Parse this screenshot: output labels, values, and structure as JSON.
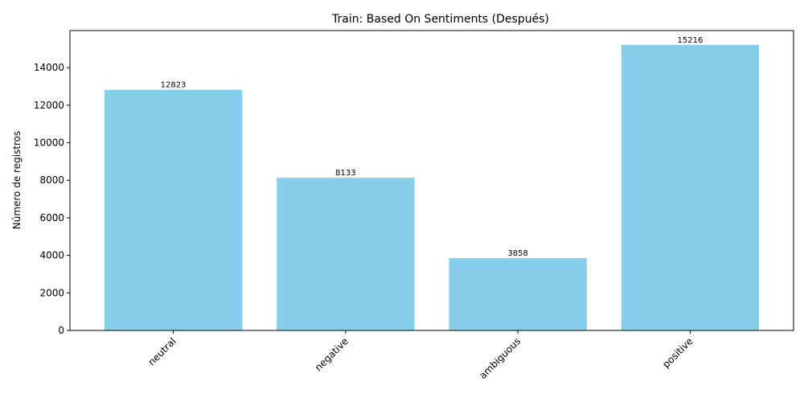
{
  "chart_data": {
    "type": "bar",
    "title": "Train: Based On Sentiments (Después)",
    "xlabel": "",
    "ylabel": "Número de registros",
    "categories": [
      "neutral",
      "negative",
      "ambiguous",
      "positive"
    ],
    "values": [
      12823,
      8133,
      3858,
      15216
    ],
    "data_labels": [
      "12823",
      "8133",
      "3858",
      "15216"
    ],
    "ylim": [
      0,
      15976.8
    ],
    "yticks": [
      0,
      2000,
      4000,
      6000,
      8000,
      10000,
      12000,
      14000
    ],
    "ytick_labels": [
      "0",
      "2000",
      "4000",
      "6000",
      "8000",
      "10000",
      "12000",
      "14000"
    ],
    "bar_color": "#87CEEB",
    "grid": false,
    "legend": "none",
    "xtick_rotation_deg": 45
  }
}
